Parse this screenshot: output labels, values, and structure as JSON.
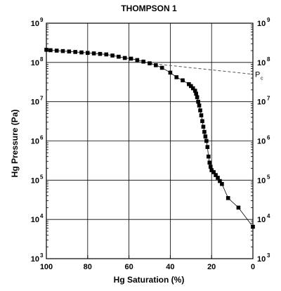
{
  "chart_data": {
    "type": "scatter",
    "title": "THOMPSON 1",
    "xlabel": "Hg Saturation (%)",
    "ylabel": "Hg Pressure (Pa)",
    "xlim": [
      100,
      0
    ],
    "x_reversed": true,
    "ylim": [
      1000,
      1000000000
    ],
    "y_scale": "log",
    "grid": true,
    "x_ticks": [
      "100",
      "80",
      "60",
      "40",
      "20",
      "0"
    ],
    "y_tick_values": [
      1000,
      10000,
      100000,
      1000000,
      10000000,
      100000000,
      1000000000
    ],
    "y_tick_base": "10",
    "y_tick_exponents": [
      "3",
      "4",
      "5",
      "6",
      "7",
      "8",
      "9"
    ],
    "series": [
      {
        "marker": "square",
        "connected": true,
        "color": "#000000",
        "points": [
          [
            100,
            210000000.0
          ],
          [
            98,
            205000000.0
          ],
          [
            95,
            200000000.0
          ],
          [
            92,
            195000000.0
          ],
          [
            89,
            190000000.0
          ],
          [
            86,
            185000000.0
          ],
          [
            83,
            180000000.0
          ],
          [
            80,
            175000000.0
          ],
          [
            77,
            170000000.0
          ],
          [
            74,
            165000000.0
          ],
          [
            71,
            160000000.0
          ],
          [
            68,
            150000000.0
          ],
          [
            65,
            140000000.0
          ],
          [
            62,
            130000000.0
          ],
          [
            59,
            125000000.0
          ],
          [
            56,
            115000000.0
          ],
          [
            53,
            105000000.0
          ],
          [
            50,
            95000000.0
          ],
          [
            47,
            85000000.0
          ],
          [
            44,
            73000000.0
          ],
          [
            40,
            55000000.0
          ],
          [
            37,
            42000000.0
          ],
          [
            34,
            35000000.0
          ],
          [
            31,
            28000000.0
          ],
          [
            30,
            25000000.0
          ],
          [
            29,
            22000000.0
          ],
          [
            28,
            19000000.0
          ],
          [
            27.5,
            16000000.0
          ],
          [
            27,
            13000000.0
          ],
          [
            26.5,
            10000000.0
          ],
          [
            26,
            8000000.0
          ],
          [
            25.5,
            6000000.0
          ],
          [
            25,
            4500000.0
          ],
          [
            24.5,
            3200000.0
          ],
          [
            24,
            2300000.0
          ],
          [
            23.5,
            1700000.0
          ],
          [
            23,
            1300000.0
          ],
          [
            22.5,
            1000000.0
          ],
          [
            22,
            700000.0
          ],
          [
            21.5,
            400000.0
          ],
          [
            21,
            280000.0
          ],
          [
            20.5,
            220000.0
          ],
          [
            20,
            180000.0
          ],
          [
            19,
            160000.0
          ],
          [
            18,
            135000.0
          ],
          [
            17,
            115000.0
          ],
          [
            16,
            95000.0
          ],
          [
            15,
            80000.0
          ],
          [
            12,
            35000.0
          ],
          [
            7,
            20000.0
          ],
          [
            0,
            6500.0
          ]
        ]
      },
      {
        "style": "dashed",
        "color": "#555555",
        "points": [
          [
            50,
            95000000.0
          ],
          [
            0,
            50000000.0
          ]
        ]
      }
    ],
    "annotations": [
      {
        "text": "P",
        "subscript": "c",
        "x": 0,
        "y": 50000000.0
      }
    ]
  }
}
